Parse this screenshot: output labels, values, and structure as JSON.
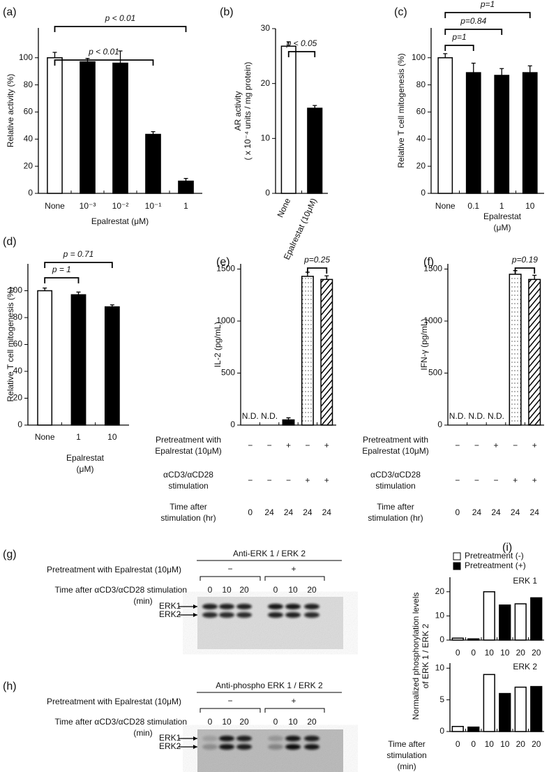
{
  "chart_data": [
    {
      "type": "bar",
      "panel_label": "(a)",
      "categories": [
        "None",
        "10⁻³",
        "10⁻²",
        "10⁻¹",
        "1"
      ],
      "values": [
        100,
        97,
        96,
        43.5,
        9
      ],
      "errors": [
        4,
        2.5,
        9,
        2,
        2
      ],
      "fills": [
        "#ffffff",
        "#000000",
        "#000000",
        "#000000",
        "#000000"
      ],
      "ylim": [
        0,
        122
      ],
      "yticks": [
        0,
        20,
        40,
        60,
        80,
        100
      ],
      "ylabel": [
        "Relative activity (%)"
      ],
      "xlabel": [
        "Epalrestat (μM)"
      ],
      "annotations": [
        "p < 0.01",
        "p < 0.01"
      ]
    },
    {
      "type": "bar",
      "panel_label": "(b)",
      "categories": [
        "None",
        "Epalrestat (10μM)"
      ],
      "values": [
        26.8,
        15.5
      ],
      "errors": [
        0.8,
        0.5
      ],
      "fills": [
        "#ffffff",
        "#000000"
      ],
      "ylim": [
        0,
        30
      ],
      "yticks": [
        0,
        10,
        20,
        30
      ],
      "ylabel": [
        "AR activity",
        "( x 10⁻⁴ units / mg protein)"
      ],
      "annotations": [
        "p < 0.05"
      ]
    },
    {
      "type": "bar",
      "panel_label": "(c)",
      "categories": [
        "None",
        "0.1",
        "1",
        "10"
      ],
      "values": [
        100,
        89,
        87,
        89
      ],
      "errors": [
        3,
        7,
        5,
        5
      ],
      "fills": [
        "#ffffff",
        "#000000",
        "#000000",
        "#000000"
      ],
      "ylim": [
        0,
        122
      ],
      "yticks": [
        0,
        20,
        40,
        60,
        80,
        100
      ],
      "ylabel": [
        "Relative T cell mitogenesis (%)"
      ],
      "xlabel": [
        "Epalrestat",
        "(μM)"
      ],
      "annotations": [
        "p=1",
        "p=0.84",
        "p=1"
      ]
    },
    {
      "type": "bar",
      "panel_label": "(d)",
      "categories": [
        "None",
        "1",
        "10"
      ],
      "values": [
        100,
        97,
        88
      ],
      "errors": [
        2,
        2,
        1.5
      ],
      "fills": [
        "#ffffff",
        "#000000",
        "#000000"
      ],
      "ylim": [
        0,
        120
      ],
      "yticks": [
        0,
        20,
        40,
        60,
        80,
        100
      ],
      "ylabel": [
        "Relative T cell mitogenesis (%)"
      ],
      "xlabel": [
        "Epalrestat",
        "(μM)"
      ],
      "annotations": [
        "p = 0.71",
        "p = 1"
      ]
    },
    {
      "type": "bar",
      "panel_label": "(e)",
      "categories": [
        null,
        null,
        null,
        null,
        null
      ],
      "values": [
        null,
        null,
        50,
        1430,
        1400
      ],
      "value_labels": [
        "N.D.",
        "N.D.",
        null,
        null,
        null
      ],
      "errors": [
        null,
        null,
        20,
        40,
        35
      ],
      "fills": [
        "#ffffff",
        "#ffffff",
        "#000000",
        "dotted",
        "hatched"
      ],
      "ylim": [
        0,
        1550
      ],
      "yticks": [
        0,
        500,
        1000,
        1500
      ],
      "ylabel": [
        "IL-2 (pg/mL)"
      ],
      "annotations": [
        "p=0.25"
      ],
      "conditions": [
        {
          "label": [
            "Pretreatment with",
            "Epalrestat (10μM)"
          ],
          "values": [
            "−",
            "−",
            "+",
            "−",
            "+"
          ]
        },
        {
          "label": [
            "αCD3/αCD28",
            "stimulation"
          ],
          "values": [
            "−",
            "−",
            "−",
            "+",
            "+"
          ]
        },
        {
          "label": [
            "Time after",
            "stimulation (hr)"
          ],
          "values": [
            0,
            24,
            24,
            24,
            24
          ]
        }
      ]
    },
    {
      "type": "bar",
      "panel_label": "(f)",
      "categories": [
        null,
        null,
        null,
        null,
        null
      ],
      "values": [
        null,
        null,
        null,
        1450,
        1400
      ],
      "value_labels": [
        "N.D.",
        "N.D.",
        "N.D.",
        null,
        null
      ],
      "errors": [
        null,
        null,
        null,
        35,
        40
      ],
      "fills": [
        "#ffffff",
        "#ffffff",
        "#ffffff",
        "dotted",
        "hatched"
      ],
      "ylim": [
        0,
        1550
      ],
      "yticks": [
        0,
        500,
        1000,
        1500
      ],
      "ylabel": [
        "IFN-γ (pg/mL)"
      ],
      "annotations": [
        "p=0.19"
      ],
      "conditions": [
        {
          "label": [
            "Pretreatment with",
            "Epalrestat (10μM)"
          ],
          "values": [
            "−",
            "−",
            "+",
            "−",
            "+"
          ]
        },
        {
          "label": [
            "αCD3/αCD28",
            "stimulation"
          ],
          "values": [
            "−",
            "−",
            "−",
            "+",
            "+"
          ]
        },
        {
          "label": [
            "Time after",
            "stimulation (hr)"
          ],
          "values": [
            0,
            24,
            24,
            24,
            24
          ]
        }
      ]
    },
    {
      "type": "bar",
      "panel_label": "(i)",
      "title": "ERK 1",
      "categories": [
        0,
        0,
        10,
        10,
        20,
        20
      ],
      "values": [
        0.8,
        0.5,
        20,
        14.5,
        15,
        17.5
      ],
      "fills": [
        "#ffffff",
        "#000000",
        "#ffffff",
        "#000000",
        "#ffffff",
        "#000000"
      ],
      "ylim": [
        0,
        26
      ],
      "yticks": [
        0,
        10,
        20
      ],
      "ylabel": [
        "Normalized phosphorylation levels",
        "of ERK 1 / ERK 2"
      ],
      "legend": [
        {
          "label": "Pretreatment (-)",
          "color": "#ffffff"
        },
        {
          "label": "Pretreatment (+)",
          "color": "#000000"
        }
      ]
    },
    {
      "type": "bar",
      "title": "ERK 2",
      "categories": [
        0,
        0,
        10,
        10,
        20,
        20
      ],
      "values": [
        0.8,
        0.7,
        9,
        6,
        7,
        7.1
      ],
      "fills": [
        "#ffffff",
        "#000000",
        "#ffffff",
        "#000000",
        "#ffffff",
        "#000000"
      ],
      "ylim": [
        0,
        10.8
      ],
      "yticks": [
        0,
        5,
        10
      ],
      "xlabel": [
        "Time after",
        "stimulation",
        "(min)"
      ]
    }
  ],
  "blots": [
    {
      "panel_label": "(g)",
      "title": "Anti-ERK 1 / ERK 2",
      "rows": [
        "Pretreatment with Epalrestat (10μM)",
        "Time after αCD3/αCD28  stimulation",
        "(min)"
      ],
      "groups": [
        "−",
        "+"
      ],
      "lanes": [
        0,
        10,
        20,
        0,
        10,
        20
      ],
      "bands": [
        "ERK1",
        "ERK2"
      ]
    },
    {
      "panel_label": "(h)",
      "title": "Anti-phospho ERK 1 / ERK 2",
      "rows": [
        "Pretreatment with Epalrestat (10μM)",
        "Time after αCD3/αCD28  stimulation",
        "(min)"
      ],
      "groups": [
        "−",
        "+"
      ],
      "lanes": [
        0,
        10,
        20,
        0,
        10,
        20
      ],
      "bands": [
        "ERK1",
        "ERK2"
      ]
    }
  ]
}
